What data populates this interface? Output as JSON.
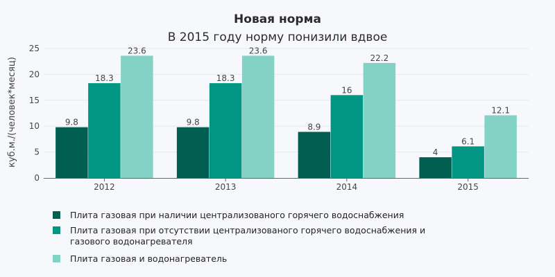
{
  "chart_data": {
    "type": "bar",
    "title": "Новая норма",
    "subtitle": "В 2015 году норму понизили вдвое",
    "xlabel": "",
    "ylabel": "куб.м./(человек*месяц)",
    "categories": [
      "2012",
      "2013",
      "2014",
      "2015"
    ],
    "ylim": [
      0,
      25
    ],
    "yticks": [
      0,
      5,
      10,
      15,
      20,
      25
    ],
    "grid": true,
    "legend_placement": "bottom-left",
    "series": [
      {
        "name": "Плита газовая при наличии централизованого горячего водоснабжения",
        "legend_lines": [
          "Плита газовая при наличии централизованого горячего водоснабжения"
        ],
        "color": "#005f50",
        "values": [
          9.8,
          9.8,
          8.9,
          4
        ]
      },
      {
        "name": "Плита газовая при отсутствии централизованого горячего водоснабжения и газового водонагревателя",
        "legend_lines": [
          "Плита газовая при отсутствии централизованого горячего водоснабжения и",
          "газового водонагревателя"
        ],
        "color": "#009683",
        "values": [
          18.3,
          18.3,
          16,
          6.1
        ]
      },
      {
        "name": "Плита газовая и водонагреватель",
        "legend_lines": [
          "Плита газовая и водонагреватель"
        ],
        "color": "#84d2c5",
        "values": [
          23.6,
          23.6,
          22.2,
          12.1
        ]
      }
    ]
  }
}
